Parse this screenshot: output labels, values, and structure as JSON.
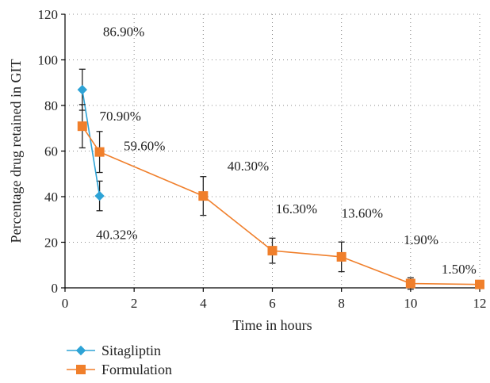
{
  "chart_data": {
    "type": "line",
    "xlabel": "Time in hours",
    "ylabel": "Percentage drug retained in GIT",
    "xlim": [
      0,
      12
    ],
    "ylim": [
      0,
      120
    ],
    "xticks": [
      0,
      2,
      4,
      6,
      8,
      10,
      12
    ],
    "yticks": [
      0,
      20,
      40,
      60,
      80,
      100,
      120
    ],
    "grid": "dotted",
    "legend_position": "bottom-left",
    "series": [
      {
        "name": "Sitagliptin",
        "color": "#2ea3d6",
        "marker": "diamond",
        "x": [
          0.5,
          1
        ],
        "y": [
          86.9,
          40.32
        ],
        "error": [
          9,
          6.5
        ]
      },
      {
        "name": "Formulation",
        "color": "#f07f2b",
        "marker": "square",
        "x": [
          0.5,
          1,
          4,
          6,
          8,
          10,
          12
        ],
        "y": [
          70.9,
          59.6,
          40.3,
          16.3,
          13.6,
          1.9,
          1.5
        ],
        "error": [
          9.5,
          9,
          8.5,
          5.5,
          6.5,
          2.5,
          0
        ]
      }
    ],
    "annotations": [
      {
        "text": "86.90%",
        "x": 1.7,
        "y": 112.5
      },
      {
        "text": "70.90%",
        "x": 1.6,
        "y": 75.5
      },
      {
        "text": "59.60%",
        "x": 2.3,
        "y": 62.5
      },
      {
        "text": "40.30%",
        "x": 5.3,
        "y": 53.5
      },
      {
        "text": "16.30%",
        "x": 6.7,
        "y": 34.8
      },
      {
        "text": "13.60%",
        "x": 8.6,
        "y": 32.8
      },
      {
        "text": "1.90%",
        "x": 10.3,
        "y": 21.3
      },
      {
        "text": "1.50%",
        "x": 11.4,
        "y": 8.3
      },
      {
        "text": "40.32%",
        "x": 1.5,
        "y": 23.5
      }
    ]
  }
}
